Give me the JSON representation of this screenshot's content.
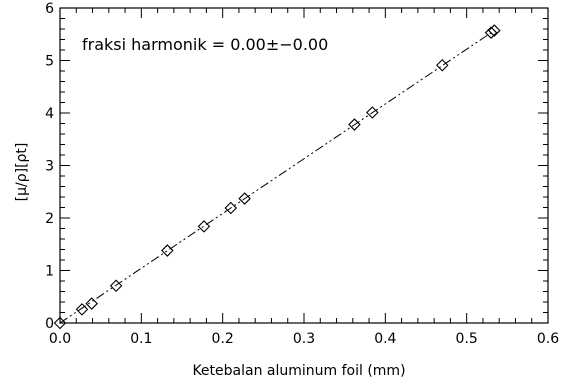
{
  "chart_data": {
    "type": "scatter",
    "xlabel": "Ketebalan aluminum foil (mm)",
    "ylabel": "[μ/ρ][ρt]",
    "annotation": "fraksi harmonik = 0.00±−0.00",
    "xlim": [
      0.0,
      0.6
    ],
    "ylim": [
      0,
      6
    ],
    "x_ticks": [
      0.0,
      0.1,
      0.2,
      0.3,
      0.4,
      0.5,
      0.6
    ],
    "x_tick_labels": [
      "0.0",
      "0.1",
      "0.2",
      "0.3",
      "0.4",
      "0.5",
      "0.6"
    ],
    "y_ticks": [
      0,
      1,
      2,
      3,
      4,
      5,
      6
    ],
    "y_tick_labels": [
      "0",
      "1",
      "2",
      "3",
      "4",
      "5",
      "6"
    ],
    "grid": false,
    "series": [
      {
        "marker": "diamond",
        "points": [
          {
            "x": 0.0,
            "y": 0.0
          },
          {
            "x": 0.027,
            "y": 0.26
          },
          {
            "x": 0.039,
            "y": 0.37
          },
          {
            "x": 0.069,
            "y": 0.71
          },
          {
            "x": 0.132,
            "y": 1.38
          },
          {
            "x": 0.177,
            "y": 1.84
          },
          {
            "x": 0.21,
            "y": 2.19
          },
          {
            "x": 0.227,
            "y": 2.37
          },
          {
            "x": 0.362,
            "y": 3.78
          },
          {
            "x": 0.384,
            "y": 4.01
          },
          {
            "x": 0.47,
            "y": 4.91
          },
          {
            "x": 0.53,
            "y": 5.53
          },
          {
            "x": 0.534,
            "y": 5.57
          }
        ]
      }
    ],
    "fit_line": {
      "style": "dash-dot-dot",
      "x": [
        0.0,
        0.534
      ],
      "y": [
        0.0,
        5.57
      ]
    }
  }
}
